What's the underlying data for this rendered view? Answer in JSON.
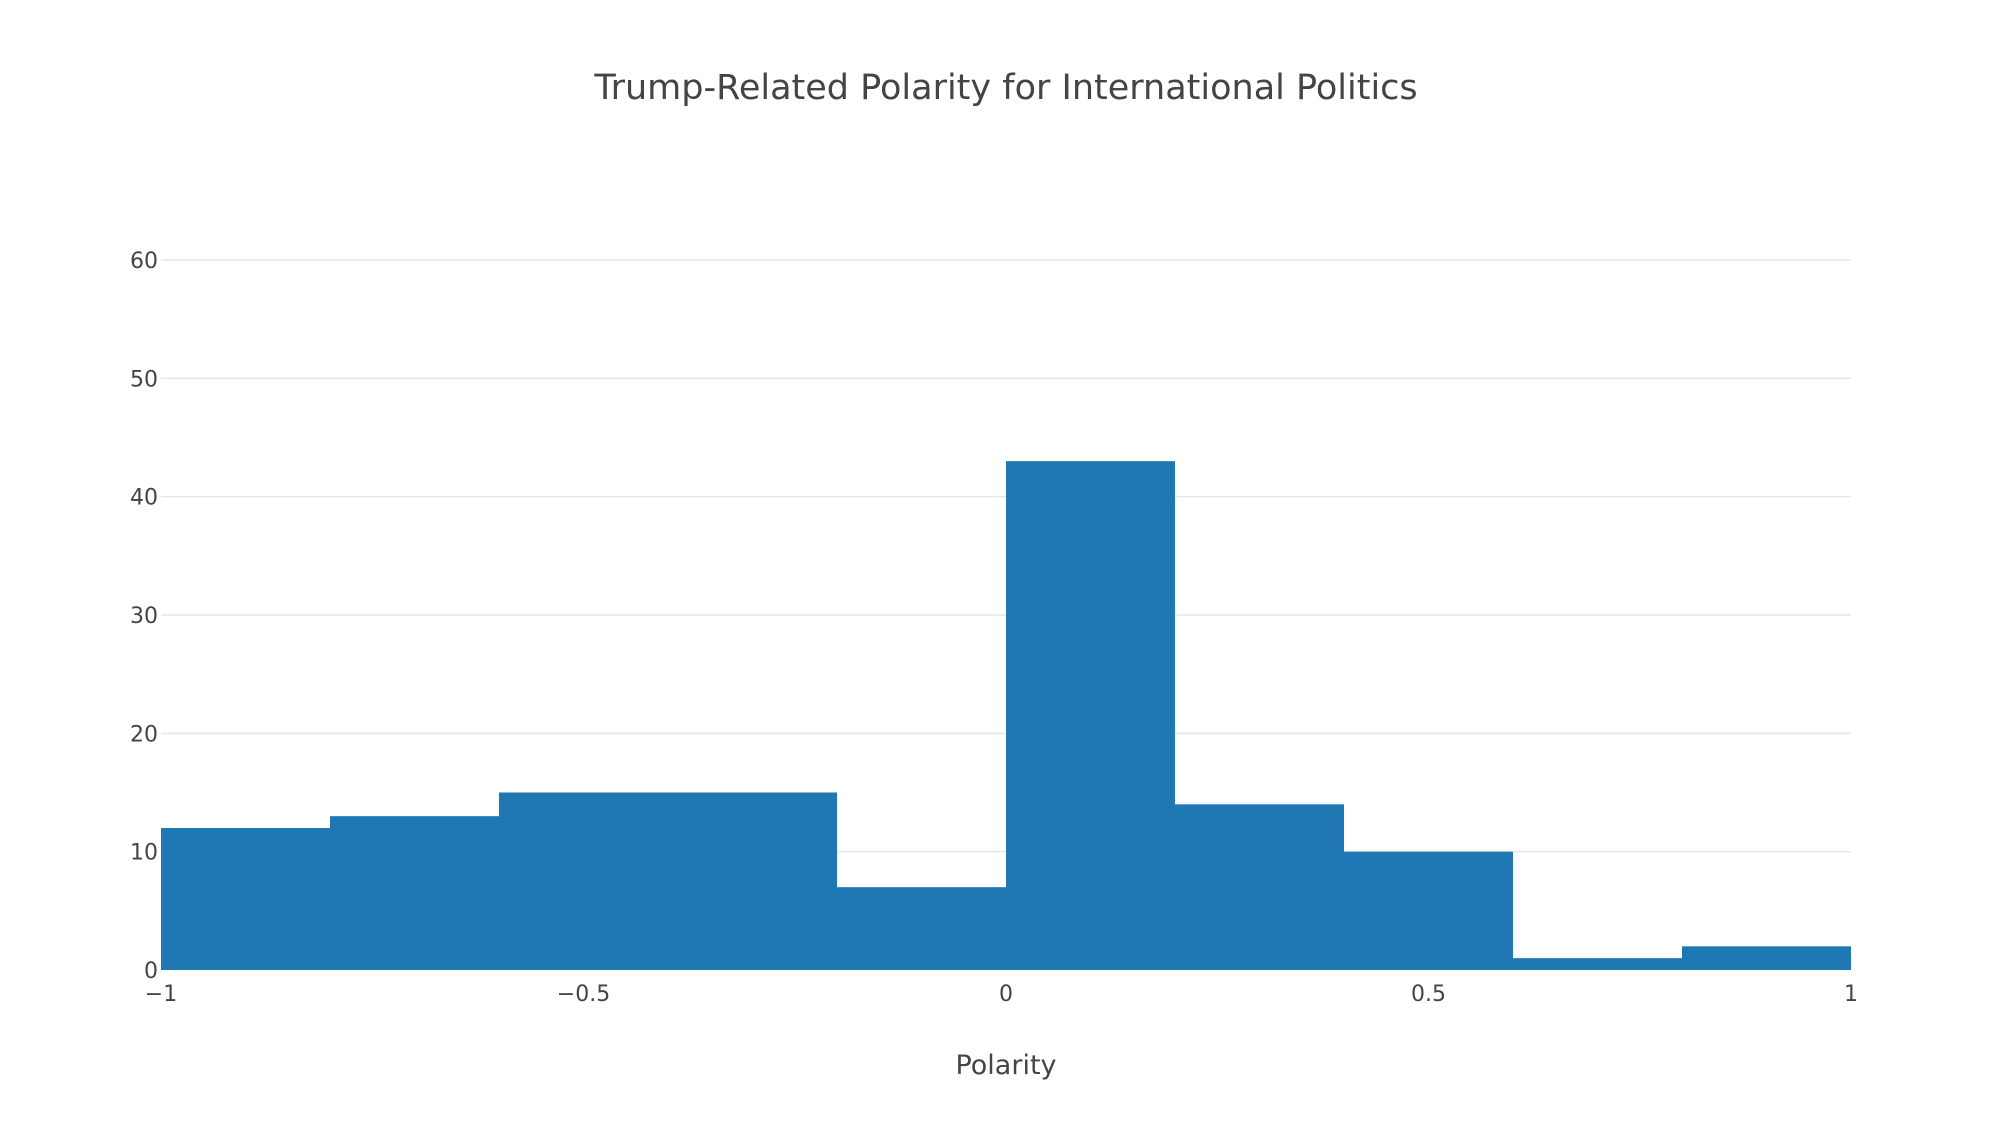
{
  "chart_data": {
    "type": "bar",
    "title": "Trump-Related Polarity for International Politics",
    "xlabel": "Polarity",
    "ylabel": "",
    "xlim": [
      -1,
      1
    ],
    "ylim": [
      0,
      60
    ],
    "grid": true,
    "bar_color": "#1f77b4",
    "x_ticks": [
      {
        "value": -1,
        "label": "−1"
      },
      {
        "value": -0.5,
        "label": "−0.5"
      },
      {
        "value": 0,
        "label": "0"
      },
      {
        "value": 0.5,
        "label": "0.5"
      },
      {
        "value": 1,
        "label": "1"
      }
    ],
    "y_ticks": [
      {
        "value": 0,
        "label": "0"
      },
      {
        "value": 10,
        "label": "10"
      },
      {
        "value": 20,
        "label": "20"
      },
      {
        "value": 30,
        "label": "30"
      },
      {
        "value": 40,
        "label": "40"
      },
      {
        "value": 50,
        "label": "50"
      },
      {
        "value": 60,
        "label": "60"
      }
    ],
    "bins": [
      {
        "x0": -1.0,
        "x1": -0.8,
        "count": 12
      },
      {
        "x0": -0.8,
        "x1": -0.6,
        "count": 13
      },
      {
        "x0": -0.6,
        "x1": -0.4,
        "count": 15
      },
      {
        "x0": -0.4,
        "x1": -0.2,
        "count": 15
      },
      {
        "x0": -0.2,
        "x1": 0.0,
        "count": 7
      },
      {
        "x0": 0.0,
        "x1": 0.2,
        "count": 43
      },
      {
        "x0": 0.2,
        "x1": 0.4,
        "count": 14
      },
      {
        "x0": 0.4,
        "x1": 0.6,
        "count": 10
      },
      {
        "x0": 0.6,
        "x1": 0.8,
        "count": 1
      },
      {
        "x0": 0.8,
        "x1": 1.0,
        "count": 2
      }
    ]
  }
}
